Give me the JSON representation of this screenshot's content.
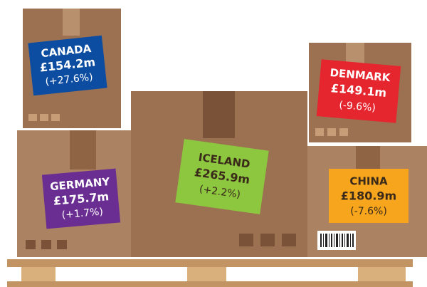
{
  "labels": [
    {
      "country": "CANADA",
      "value": "£154.2m",
      "change": "(+27.6%)"
    },
    {
      "country": "DENMARK",
      "value": "£149.1m",
      "change": "(-9.6%)"
    },
    {
      "country": "ICELAND",
      "value": "£265.9m",
      "change": "(+2.2%)"
    },
    {
      "country": "GERMANY",
      "value": "£175.7m",
      "change": "(+1.7%)"
    },
    {
      "country": "CHINA",
      "value": "£180.9m",
      "change": "(-7.6%)"
    }
  ]
}
